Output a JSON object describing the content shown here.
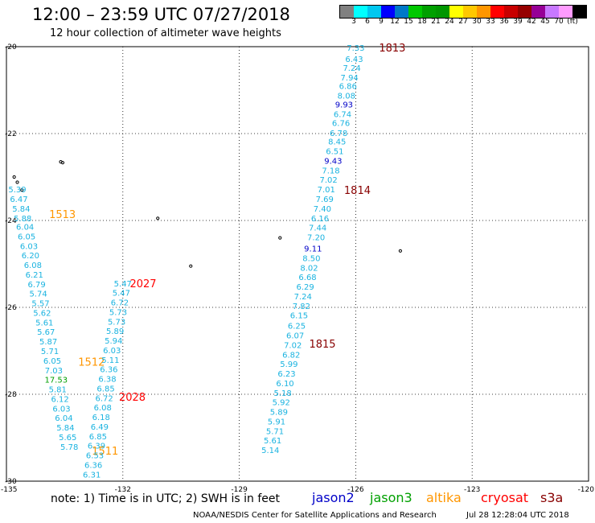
{
  "title": "12:00 – 23:59 UTC 07/27/2018",
  "subtitle": "12 hour collection of altimeter wave heights",
  "colorbar": {
    "colors": [
      "#808080",
      "#00ffff",
      "#00c8f0",
      "#0000ff",
      "#0078c8",
      "#00c800",
      "#00a000",
      "#009600",
      "#ffff00",
      "#ffc800",
      "#ff9600",
      "#ff0000",
      "#c80000",
      "#960000",
      "#960096",
      "#c878ff",
      "#ff9bff",
      "#000000"
    ],
    "labels": [
      "3",
      "6",
      "9",
      "12",
      "15",
      "18",
      "21",
      "24",
      "27",
      "30",
      "33",
      "36",
      "39",
      "42",
      "45",
      "70",
      "(ft)"
    ]
  },
  "map": {
    "lat_ticks": [
      "-20",
      "-22",
      "-24",
      "-26",
      "-28",
      "-30"
    ],
    "lon_ticks": [
      "-135",
      "-132",
      "-129",
      "-126",
      "-123",
      "-120"
    ]
  },
  "tracks": [
    {
      "time": "1813",
      "time_color": "#880000",
      "label_lon": -125.4,
      "label_lat": -20.02,
      "points": [
        {
          "v": "7.33",
          "lon": -126.0,
          "lat": -20.02,
          "c": "#1ab3e0"
        },
        {
          "v": "6.43",
          "lon": -126.04,
          "lat": -20.28,
          "c": "#1ab3e0"
        },
        {
          "v": "7.24",
          "lon": -126.1,
          "lat": -20.48,
          "c": "#1ab3e0"
        },
        {
          "v": "7.94",
          "lon": -126.16,
          "lat": -20.7,
          "c": "#1ab3e0"
        },
        {
          "v": "6.86",
          "lon": -126.2,
          "lat": -20.9,
          "c": "#1ab3e0"
        },
        {
          "v": "8.08",
          "lon": -126.24,
          "lat": -21.12,
          "c": "#1ab3e0"
        },
        {
          "v": "9.93",
          "lon": -126.3,
          "lat": -21.32,
          "c": "#0000c8"
        },
        {
          "v": "6.74",
          "lon": -126.34,
          "lat": -21.55,
          "c": "#1ab3e0"
        },
        {
          "v": "6.76",
          "lon": -126.38,
          "lat": -21.75,
          "c": "#1ab3e0"
        },
        {
          "v": "6.78",
          "lon": -126.44,
          "lat": -21.98,
          "c": "#1ab3e0"
        },
        {
          "v": "8.45",
          "lon": -126.48,
          "lat": -22.18,
          "c": "#1ab3e0"
        },
        {
          "v": "6.51",
          "lon": -126.54,
          "lat": -22.4,
          "c": "#1ab3e0"
        },
        {
          "v": "9.43",
          "lon": -126.58,
          "lat": -22.62,
          "c": "#0000c8"
        }
      ]
    },
    {
      "time": "1814",
      "time_color": "#880000",
      "label_lon": -126.3,
      "label_lat": -23.3,
      "points": [
        {
          "v": "7.18",
          "lon": -126.64,
          "lat": -22.84,
          "c": "#1ab3e0"
        },
        {
          "v": "7.02",
          "lon": -126.7,
          "lat": -23.06,
          "c": "#1ab3e0"
        },
        {
          "v": "7.01",
          "lon": -126.76,
          "lat": -23.28,
          "c": "#1ab3e0"
        },
        {
          "v": "7.69",
          "lon": -126.8,
          "lat": -23.5,
          "c": "#1ab3e0"
        },
        {
          "v": "7.40",
          "lon": -126.86,
          "lat": -23.72,
          "c": "#1ab3e0"
        },
        {
          "v": "6.16",
          "lon": -126.92,
          "lat": -23.94,
          "c": "#1ab3e0"
        },
        {
          "v": "7.44",
          "lon": -126.98,
          "lat": -24.16,
          "c": "#1ab3e0"
        },
        {
          "v": "7.20",
          "lon": -127.02,
          "lat": -24.38,
          "c": "#1ab3e0"
        },
        {
          "v": "9.11",
          "lon": -127.1,
          "lat": -24.64,
          "c": "#0000c8"
        },
        {
          "v": "8.50",
          "lon": -127.14,
          "lat": -24.86,
          "c": "#1ab3e0"
        },
        {
          "v": "8.02",
          "lon": -127.2,
          "lat": -25.08,
          "c": "#1ab3e0"
        },
        {
          "v": "6.68",
          "lon": -127.24,
          "lat": -25.3,
          "c": "#1ab3e0"
        },
        {
          "v": "6.29",
          "lon": -127.3,
          "lat": -25.52,
          "c": "#1ab3e0"
        },
        {
          "v": "7.24",
          "lon": -127.36,
          "lat": -25.74,
          "c": "#1ab3e0"
        }
      ]
    },
    {
      "time": "1815",
      "time_color": "#880000",
      "label_lon": -127.2,
      "label_lat": -26.83,
      "points": [
        {
          "v": "7.82",
          "lon": -127.4,
          "lat": -25.96,
          "c": "#1ab3e0"
        },
        {
          "v": "6.15",
          "lon": -127.46,
          "lat": -26.18,
          "c": "#1ab3e0"
        },
        {
          "v": "6.25",
          "lon": -127.52,
          "lat": -26.42,
          "c": "#1ab3e0"
        },
        {
          "v": "6.07",
          "lon": -127.56,
          "lat": -26.64,
          "c": "#1ab3e0"
        },
        {
          "v": "7.02",
          "lon": -127.62,
          "lat": -26.86,
          "c": "#1ab3e0"
        },
        {
          "v": "6.82",
          "lon": -127.66,
          "lat": -27.08,
          "c": "#1ab3e0"
        },
        {
          "v": "5.99",
          "lon": -127.72,
          "lat": -27.3,
          "c": "#1ab3e0"
        },
        {
          "v": "6.23",
          "lon": -127.78,
          "lat": -27.52,
          "c": "#1ab3e0"
        },
        {
          "v": "6.10",
          "lon": -127.82,
          "lat": -27.74,
          "c": "#1ab3e0"
        },
        {
          "v": "5.18",
          "lon": -127.88,
          "lat": -27.96,
          "c": "#1ab3e0"
        },
        {
          "v": "5.92",
          "lon": -127.92,
          "lat": -28.18,
          "c": "#1ab3e0"
        },
        {
          "v": "5.89",
          "lon": -127.98,
          "lat": -28.4,
          "c": "#1ab3e0"
        },
        {
          "v": "5.91",
          "lon": -128.04,
          "lat": -28.62,
          "c": "#1ab3e0"
        },
        {
          "v": "5.71",
          "lon": -128.08,
          "lat": -28.84,
          "c": "#1ab3e0"
        },
        {
          "v": "5.61",
          "lon": -128.14,
          "lat": -29.06,
          "c": "#1ab3e0"
        },
        {
          "v": "5.14",
          "lon": -128.2,
          "lat": -29.28,
          "c": "#1ab3e0"
        }
      ]
    },
    {
      "time": "1513",
      "time_color": "#ff9600",
      "label_lon": -133.9,
      "label_lat": -23.85,
      "points": [
        {
          "v": "5.39",
          "lon": -134.72,
          "lat": -23.28,
          "c": "#1ab3e0"
        },
        {
          "v": "6.47",
          "lon": -134.68,
          "lat": -23.5,
          "c": "#1ab3e0"
        },
        {
          "v": "5.84",
          "lon": -134.62,
          "lat": -23.72,
          "c": "#1ab3e0"
        },
        {
          "v": "5.88",
          "lon": -134.58,
          "lat": -23.94,
          "c": "#1ab3e0"
        },
        {
          "v": "6.04",
          "lon": -134.52,
          "lat": -24.14,
          "c": "#1ab3e0"
        },
        {
          "v": "6.05",
          "lon": -134.48,
          "lat": -24.36,
          "c": "#1ab3e0"
        },
        {
          "v": "6.03",
          "lon": -134.42,
          "lat": -24.58,
          "c": "#1ab3e0"
        },
        {
          "v": "6.20",
          "lon": -134.38,
          "lat": -24.8,
          "c": "#1ab3e0"
        },
        {
          "v": "6.08",
          "lon": -134.32,
          "lat": -25.02,
          "c": "#1ab3e0"
        },
        {
          "v": "6.21",
          "lon": -134.28,
          "lat": -25.24,
          "c": "#1ab3e0"
        },
        {
          "v": "6.79",
          "lon": -134.22,
          "lat": -25.46,
          "c": "#1ab3e0"
        },
        {
          "v": "5.74",
          "lon": -134.18,
          "lat": -25.68,
          "c": "#1ab3e0"
        },
        {
          "v": "5.57",
          "lon": -134.12,
          "lat": -25.9,
          "c": "#1ab3e0"
        },
        {
          "v": "5.62",
          "lon": -134.08,
          "lat": -26.12,
          "c": "#1ab3e0"
        },
        {
          "v": "5.61",
          "lon": -134.02,
          "lat": -26.34,
          "c": "#1ab3e0"
        },
        {
          "v": "5.67",
          "lon": -133.98,
          "lat": -26.56,
          "c": "#1ab3e0"
        },
        {
          "v": "5.87",
          "lon": -133.92,
          "lat": -26.78,
          "c": "#1ab3e0"
        },
        {
          "v": "5.71",
          "lon": -133.88,
          "lat": -27.0,
          "c": "#1ab3e0"
        },
        {
          "v": "6.05",
          "lon": -133.82,
          "lat": -27.22,
          "c": "#1ab3e0"
        }
      ]
    },
    {
      "time": "1512",
      "time_color": "#ff9600",
      "label_lon": -133.15,
      "label_lat": -27.25,
      "points": [
        {
          "v": "7.03",
          "lon": -133.78,
          "lat": -27.44,
          "c": "#1ab3e0"
        },
        {
          "v": "17.53",
          "lon": -133.72,
          "lat": -27.66,
          "c": "#00a000"
        },
        {
          "v": "5.81",
          "lon": -133.68,
          "lat": -27.88,
          "c": "#1ab3e0"
        },
        {
          "v": "6.12",
          "lon": -133.62,
          "lat": -28.1,
          "c": "#1ab3e0"
        },
        {
          "v": "6.03",
          "lon": -133.58,
          "lat": -28.32,
          "c": "#1ab3e0"
        },
        {
          "v": "6.04",
          "lon": -133.52,
          "lat": -28.54,
          "c": "#1ab3e0"
        },
        {
          "v": "5.84",
          "lon": -133.48,
          "lat": -28.76,
          "c": "#1ab3e0"
        }
      ]
    },
    {
      "time": "1511",
      "time_color": "#ff9600",
      "label_lon": -132.8,
      "label_lat": -29.3,
      "points": [
        {
          "v": "5.65",
          "lon": -133.42,
          "lat": -28.98,
          "c": "#1ab3e0"
        },
        {
          "v": "5.78",
          "lon": -133.38,
          "lat": -29.2,
          "c": "#1ab3e0"
        }
      ]
    },
    {
      "time": "2027",
      "time_color": "#ff0000",
      "label_lon": -131.82,
      "label_lat": -25.44,
      "points": [
        {
          "v": "5.47",
          "lon": -132.0,
          "lat": -25.44,
          "c": "#1ab3e0"
        },
        {
          "v": "5.47",
          "lon": -132.04,
          "lat": -25.66,
          "c": "#1ab3e0"
        },
        {
          "v": "6.72",
          "lon": -132.08,
          "lat": -25.88,
          "c": "#1ab3e0"
        },
        {
          "v": "5.73",
          "lon": -132.12,
          "lat": -26.1,
          "c": "#1ab3e0"
        },
        {
          "v": "5.73",
          "lon": -132.16,
          "lat": -26.32,
          "c": "#1ab3e0"
        },
        {
          "v": "5.89",
          "lon": -132.2,
          "lat": -26.54,
          "c": "#1ab3e0"
        },
        {
          "v": "5.94",
          "lon": -132.24,
          "lat": -26.76,
          "c": "#1ab3e0"
        },
        {
          "v": "6.03",
          "lon": -132.28,
          "lat": -26.98,
          "c": "#1ab3e0"
        },
        {
          "v": "5.11",
          "lon": -132.32,
          "lat": -27.2,
          "c": "#1ab3e0"
        },
        {
          "v": "6.36",
          "lon": -132.36,
          "lat": -27.42,
          "c": "#1ab3e0"
        },
        {
          "v": "6.38",
          "lon": -132.4,
          "lat": -27.64,
          "c": "#1ab3e0"
        }
      ]
    },
    {
      "time": "2028",
      "time_color": "#ff0000",
      "label_lon": -132.1,
      "label_lat": -28.06,
      "points": [
        {
          "v": "6.85",
          "lon": -132.44,
          "lat": -27.86,
          "c": "#1ab3e0"
        },
        {
          "v": "6.72",
          "lon": -132.48,
          "lat": -28.08,
          "c": "#1ab3e0"
        },
        {
          "v": "6.08",
          "lon": -132.52,
          "lat": -28.3,
          "c": "#1ab3e0"
        },
        {
          "v": "6.18",
          "lon": -132.56,
          "lat": -28.52,
          "c": "#1ab3e0"
        },
        {
          "v": "6.49",
          "lon": -132.6,
          "lat": -28.74,
          "c": "#1ab3e0"
        },
        {
          "v": "6.85",
          "lon": -132.64,
          "lat": -28.96,
          "c": "#1ab3e0"
        },
        {
          "v": "6.39",
          "lon": -132.68,
          "lat": -29.18,
          "c": "#1ab3e0"
        },
        {
          "v": "6.53",
          "lon": -132.72,
          "lat": -29.4,
          "c": "#1ab3e0"
        },
        {
          "v": "6.36",
          "lon": -132.76,
          "lat": -29.62,
          "c": "#1ab3e0"
        },
        {
          "v": "6.31",
          "lon": -132.8,
          "lat": -29.84,
          "c": "#1ab3e0"
        }
      ]
    }
  ],
  "footer": {
    "note": "note:  1) Time is in UTC; 2) SWH is in feet",
    "satellites": [
      {
        "name": "jason2",
        "color": "#0000c8"
      },
      {
        "name": "jason3",
        "color": "#00a000"
      },
      {
        "name": "altika",
        "color": "#ff9600"
      },
      {
        "name": "cryosat",
        "color": "#ff0000"
      },
      {
        "name": "s3a",
        "color": "#880000"
      }
    ],
    "credit": "NOAA/NESDIS Center for Satellite Applications and Research",
    "timestamp": "Jul 28 12:28:04 UTC 2018"
  }
}
